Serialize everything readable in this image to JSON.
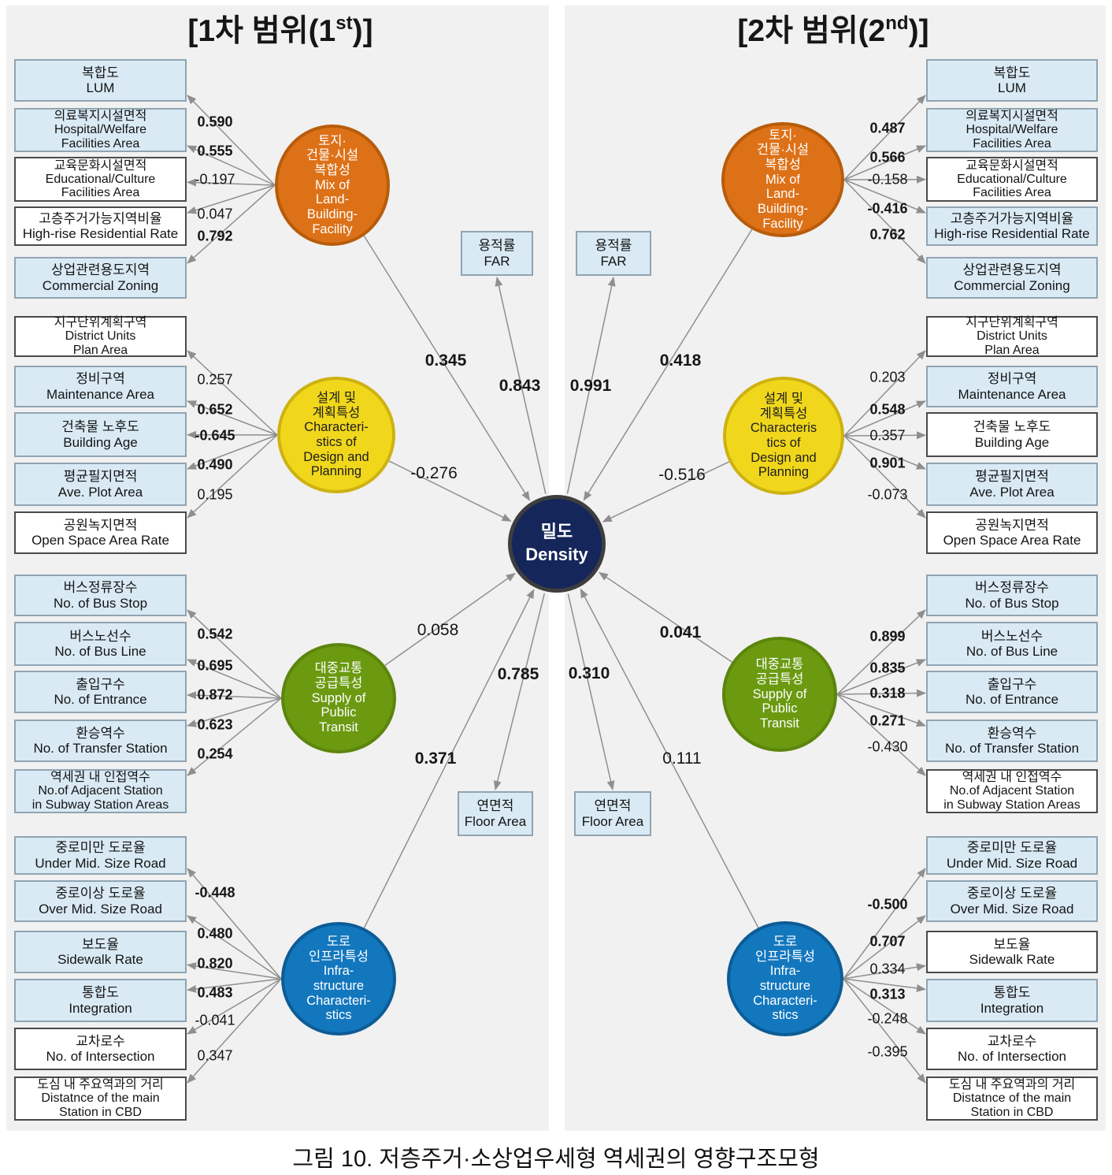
{
  "caption": "그림 10. 저층주거·소상업우세형 역세권의 영향구조모형",
  "density": {
    "ko": "밀도",
    "en": "Density"
  },
  "far": {
    "ko": "용적률",
    "en": "FAR"
  },
  "floor": {
    "ko": "연면적",
    "en": "Floor Area"
  },
  "colors": {
    "orange": "#dd7118",
    "yellow": "#f0d71c",
    "green": "#6b9a11",
    "blue": "#1377be",
    "density": "#15265b",
    "indicator_blue": "#d9eaf5",
    "indicator_white": "#ffffff",
    "panel_bg": "#f1f1f1",
    "arrow": "#8f8f8f"
  },
  "panels": [
    {
      "title_pre": "[1차 범위(1",
      "title_sup": "st",
      "title_post": ")]",
      "far_value": "0.843",
      "far_bold": true,
      "floor_value": "0.785",
      "floor_bold": true,
      "clusters": [
        {
          "name": "mix-of-land-building-facility",
          "color": "orange",
          "label_lines": [
            "토지·",
            "건물·시설",
            "복합성",
            "Mix of",
            "Land-",
            "Building-",
            "Facility"
          ],
          "path_value": "0.345",
          "path_bold": true,
          "indicators": [
            {
              "lines": [
                "복합도",
                "LUM"
              ],
              "fill": "blue",
              "loading": "0.590",
              "bold": true
            },
            {
              "lines": [
                "의료복지시설면적",
                "Hospital/Welfare",
                "Facilities Area"
              ],
              "fill": "blue",
              "loading": "0.555",
              "bold": true
            },
            {
              "lines": [
                "교육문화시설면적",
                "Educational/Culture",
                "Facilities Area"
              ],
              "fill": "white",
              "loading": "-0.197",
              "bold": false
            },
            {
              "lines": [
                "고층주거가능지역비율",
                "High-rise Residential Rate"
              ],
              "fill": "white",
              "loading": "0.047",
              "bold": false
            },
            {
              "lines": [
                "상업관련용도지역",
                "Commercial Zoning"
              ],
              "fill": "blue",
              "loading": "0.792",
              "bold": true
            }
          ]
        },
        {
          "name": "characteristics-of-design-and-planning",
          "color": "yellow",
          "label_lines": [
            "설계 및",
            "계획특성",
            "Characteri-",
            "stics of",
            "Design and",
            "Planning"
          ],
          "path_value": "-0.276",
          "path_bold": false,
          "indicators": [
            {
              "lines": [
                "지구단위계획구역",
                "District Units",
                "Plan Area"
              ],
              "fill": "white",
              "loading": "0.257",
              "bold": false
            },
            {
              "lines": [
                "정비구역",
                "Maintenance Area"
              ],
              "fill": "blue",
              "loading": "0.652",
              "bold": true
            },
            {
              "lines": [
                "건축물 노후도",
                "Building Age"
              ],
              "fill": "blue",
              "loading": "-0.645",
              "bold": true
            },
            {
              "lines": [
                "평균필지면적",
                "Ave. Plot Area"
              ],
              "fill": "blue",
              "loading": "0.490",
              "bold": true
            },
            {
              "lines": [
                "공원녹지면적",
                "Open Space Area Rate"
              ],
              "fill": "white",
              "loading": "0.195",
              "bold": false
            }
          ]
        },
        {
          "name": "supply-of-public-transit",
          "color": "green",
          "label_lines": [
            "대중교통",
            "공급특성",
            "Supply of",
            "Public",
            "Transit"
          ],
          "path_value": "0.058",
          "path_bold": false,
          "indicators": [
            {
              "lines": [
                "버스정류장수",
                "No. of Bus Stop"
              ],
              "fill": "blue",
              "loading": "0.542",
              "bold": true
            },
            {
              "lines": [
                "버스노선수",
                "No. of Bus Line"
              ],
              "fill": "blue",
              "loading": "0.695",
              "bold": true
            },
            {
              "lines": [
                "출입구수",
                "No. of Entrance"
              ],
              "fill": "blue",
              "loading": "0.872",
              "bold": true
            },
            {
              "lines": [
                "환승역수",
                "No. of Transfer Station"
              ],
              "fill": "blue",
              "loading": "0.623",
              "bold": true
            },
            {
              "lines": [
                "역세권 내 인접역수",
                "No.of Adjacent Station",
                "in Subway Station Areas"
              ],
              "fill": "blue",
              "loading": "0.254",
              "bold": true
            }
          ]
        },
        {
          "name": "infrastructure-characteristics",
          "color": "blue",
          "label_lines": [
            "도로",
            "인프라특성",
            "Infra-",
            "structure",
            "Characteri-",
            "stics"
          ],
          "path_value": "0.371",
          "path_bold": true,
          "indicators": [
            {
              "lines": [
                "중로미만 도로율",
                "Under Mid. Size Road"
              ],
              "fill": "blue",
              "loading": "-0.448",
              "bold": true
            },
            {
              "lines": [
                "중로이상 도로율",
                "Over Mid. Size Road"
              ],
              "fill": "blue",
              "loading": "0.480",
              "bold": true
            },
            {
              "lines": [
                "보도율",
                "Sidewalk Rate"
              ],
              "fill": "blue",
              "loading": "0.820",
              "bold": true
            },
            {
              "lines": [
                "통합도",
                "Integration"
              ],
              "fill": "blue",
              "loading": "0.483",
              "bold": true
            },
            {
              "lines": [
                "교차로수",
                "No. of Intersection"
              ],
              "fill": "white",
              "loading": "-0.041",
              "bold": false
            },
            {
              "lines": [
                "도심 내 주요역과의 거리",
                "Distatnce of the main",
                "Station in CBD"
              ],
              "fill": "white",
              "loading": "0.347",
              "bold": false
            }
          ]
        }
      ]
    },
    {
      "title_pre": "[2차 범위(2",
      "title_sup": "nd",
      "title_post": ")]",
      "far_value": "0.991",
      "far_bold": true,
      "floor_value": "0.310",
      "floor_bold": true,
      "clusters": [
        {
          "name": "mix-of-land-building-facility",
          "color": "orange",
          "label_lines": [
            "토지·",
            "건물·시설",
            "복합성",
            "Mix of",
            "Land-",
            "Building-",
            "Facility"
          ],
          "path_value": "0.418",
          "path_bold": true,
          "indicators": [
            {
              "lines": [
                "복합도",
                "LUM"
              ],
              "fill": "blue",
              "loading": "0.487",
              "bold": true
            },
            {
              "lines": [
                "의료복지시설면적",
                "Hospital/Welfare",
                "Facilities Area"
              ],
              "fill": "blue",
              "loading": "0.566",
              "bold": true
            },
            {
              "lines": [
                "교육문화시설면적",
                "Educational/Culture",
                "Facilities Area"
              ],
              "fill": "white",
              "loading": "-0.158",
              "bold": false
            },
            {
              "lines": [
                "고층주거가능지역비율",
                "High-rise Residential Rate"
              ],
              "fill": "blue",
              "loading": "-0.416",
              "bold": true
            },
            {
              "lines": [
                "상업관련용도지역",
                "Commercial Zoning"
              ],
              "fill": "blue",
              "loading": "0.762",
              "bold": true
            }
          ]
        },
        {
          "name": "characteristics-of-design-and-planning",
          "color": "yellow",
          "label_lines": [
            "설계 및",
            "계획특성",
            "Characteris",
            "tics of",
            "Design and",
            "Planning"
          ],
          "path_value": "-0.516",
          "path_bold": false,
          "indicators": [
            {
              "lines": [
                "지구단위계획구역",
                "District Units",
                "Plan Area"
              ],
              "fill": "white",
              "loading": "0.203",
              "bold": false
            },
            {
              "lines": [
                "정비구역",
                "Maintenance Area"
              ],
              "fill": "blue",
              "loading": "0.548",
              "bold": true
            },
            {
              "lines": [
                "건축물 노후도",
                "Building Age"
              ],
              "fill": "white",
              "loading": "0.357",
              "bold": false
            },
            {
              "lines": [
                "평균필지면적",
                "Ave. Plot Area"
              ],
              "fill": "blue",
              "loading": "0.901",
              "bold": true
            },
            {
              "lines": [
                "공원녹지면적",
                "Open Space Area Rate"
              ],
              "fill": "white",
              "loading": "-0.073",
              "bold": false
            }
          ]
        },
        {
          "name": "supply-of-public-transit",
          "color": "green",
          "label_lines": [
            "대중교통",
            "공급특성",
            "Supply of",
            "Public",
            "Transit"
          ],
          "path_value": "0.041",
          "path_bold": true,
          "indicators": [
            {
              "lines": [
                "버스정류장수",
                "No. of Bus Stop"
              ],
              "fill": "blue",
              "loading": "0.899",
              "bold": true
            },
            {
              "lines": [
                "버스노선수",
                "No. of Bus Line"
              ],
              "fill": "blue",
              "loading": "0.835",
              "bold": true
            },
            {
              "lines": [
                "출입구수",
                "No. of Entrance"
              ],
              "fill": "blue",
              "loading": "0.318",
              "bold": true
            },
            {
              "lines": [
                "환승역수",
                "No. of Transfer Station"
              ],
              "fill": "blue",
              "loading": "0.271",
              "bold": true
            },
            {
              "lines": [
                "역세권 내 인접역수",
                "No.of Adjacent Station",
                "in Subway Station Areas"
              ],
              "fill": "white",
              "loading": "-0.430",
              "bold": false
            }
          ]
        },
        {
          "name": "infrastructure-characteristics",
          "color": "blue",
          "label_lines": [
            "도로",
            "인프라특성",
            "Infra-",
            "structure",
            "Characteri-",
            "stics"
          ],
          "path_value": "0.111",
          "path_bold": false,
          "indicators": [
            {
              "lines": [
                "중로미만 도로율",
                "Under Mid. Size Road"
              ],
              "fill": "blue",
              "loading": "-0.500",
              "bold": true
            },
            {
              "lines": [
                "중로이상 도로율",
                "Over Mid. Size Road"
              ],
              "fill": "blue",
              "loading": "0.707",
              "bold": true
            },
            {
              "lines": [
                "보도율",
                "Sidewalk Rate"
              ],
              "fill": "white",
              "loading": "0.334",
              "bold": false
            },
            {
              "lines": [
                "통합도",
                "Integration"
              ],
              "fill": "blue",
              "loading": "0.313",
              "bold": true
            },
            {
              "lines": [
                "교차로수",
                "No. of Intersection"
              ],
              "fill": "white",
              "loading": "-0.248",
              "bold": false
            },
            {
              "lines": [
                "도심 내 주요역과의 거리",
                "Distatnce of the main",
                "Station in CBD"
              ],
              "fill": "white",
              "loading": "-0.395",
              "bold": false
            }
          ]
        }
      ]
    }
  ]
}
